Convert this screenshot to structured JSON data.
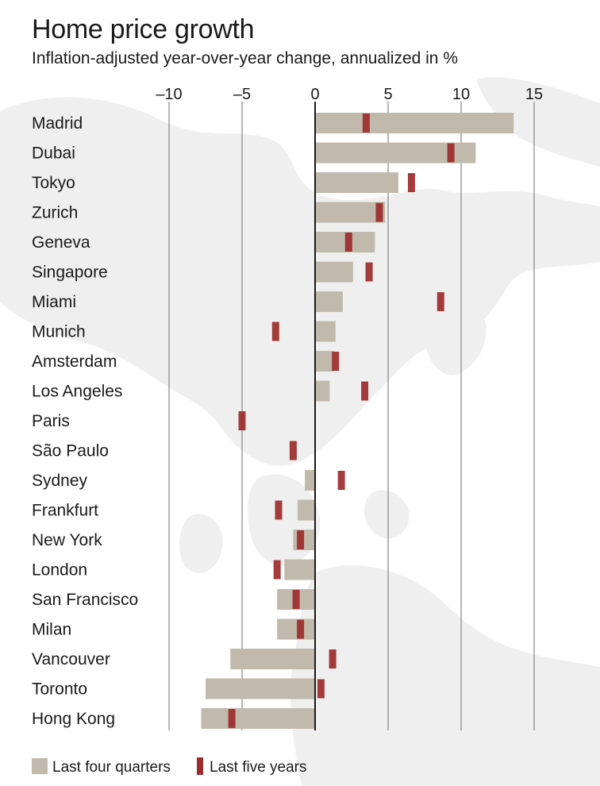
{
  "chart_data": {
    "type": "bar",
    "title": "Home price growth",
    "subtitle": "Inflation-adjusted year-over-year change, annualized in %",
    "xlim": [
      -10,
      15
    ],
    "ticks": [
      -10,
      -5,
      0,
      5,
      10,
      15
    ],
    "tick_labels": [
      "–10",
      "–5",
      "0",
      "5",
      "10",
      "15"
    ],
    "orientation": "horizontal",
    "grid": true,
    "legend_position": "bottom-left",
    "categories": [
      "Madrid",
      "Dubai",
      "Tokyo",
      "Zurich",
      "Geneva",
      "Singapore",
      "Miami",
      "Munich",
      "Amsterdam",
      "Los Angeles",
      "Paris",
      "São Paulo",
      "Sydney",
      "Frankfurt",
      "New York",
      "London",
      "San Francisco",
      "Milan",
      "Vancouver",
      "Toronto",
      "Hong Kong"
    ],
    "series": [
      {
        "name": "Last four quarters",
        "kind": "bar",
        "color": "#c1b9ab",
        "values": [
          13.6,
          11.0,
          5.7,
          4.8,
          4.1,
          2.6,
          1.9,
          1.4,
          1.3,
          1.0,
          0.0,
          0.0,
          -0.7,
          -1.2,
          -1.5,
          -2.1,
          -2.6,
          -2.6,
          -5.8,
          -7.5,
          -7.8
        ]
      },
      {
        "name": "Last five years",
        "kind": "marker",
        "color": "#9c2b2b",
        "values": [
          3.5,
          9.3,
          6.6,
          4.4,
          2.3,
          3.7,
          8.6,
          -2.7,
          1.4,
          3.4,
          -5.0,
          -1.5,
          1.8,
          -2.5,
          -1.0,
          -2.6,
          -1.3,
          -1.0,
          1.2,
          0.4,
          -5.7
        ]
      }
    ]
  }
}
